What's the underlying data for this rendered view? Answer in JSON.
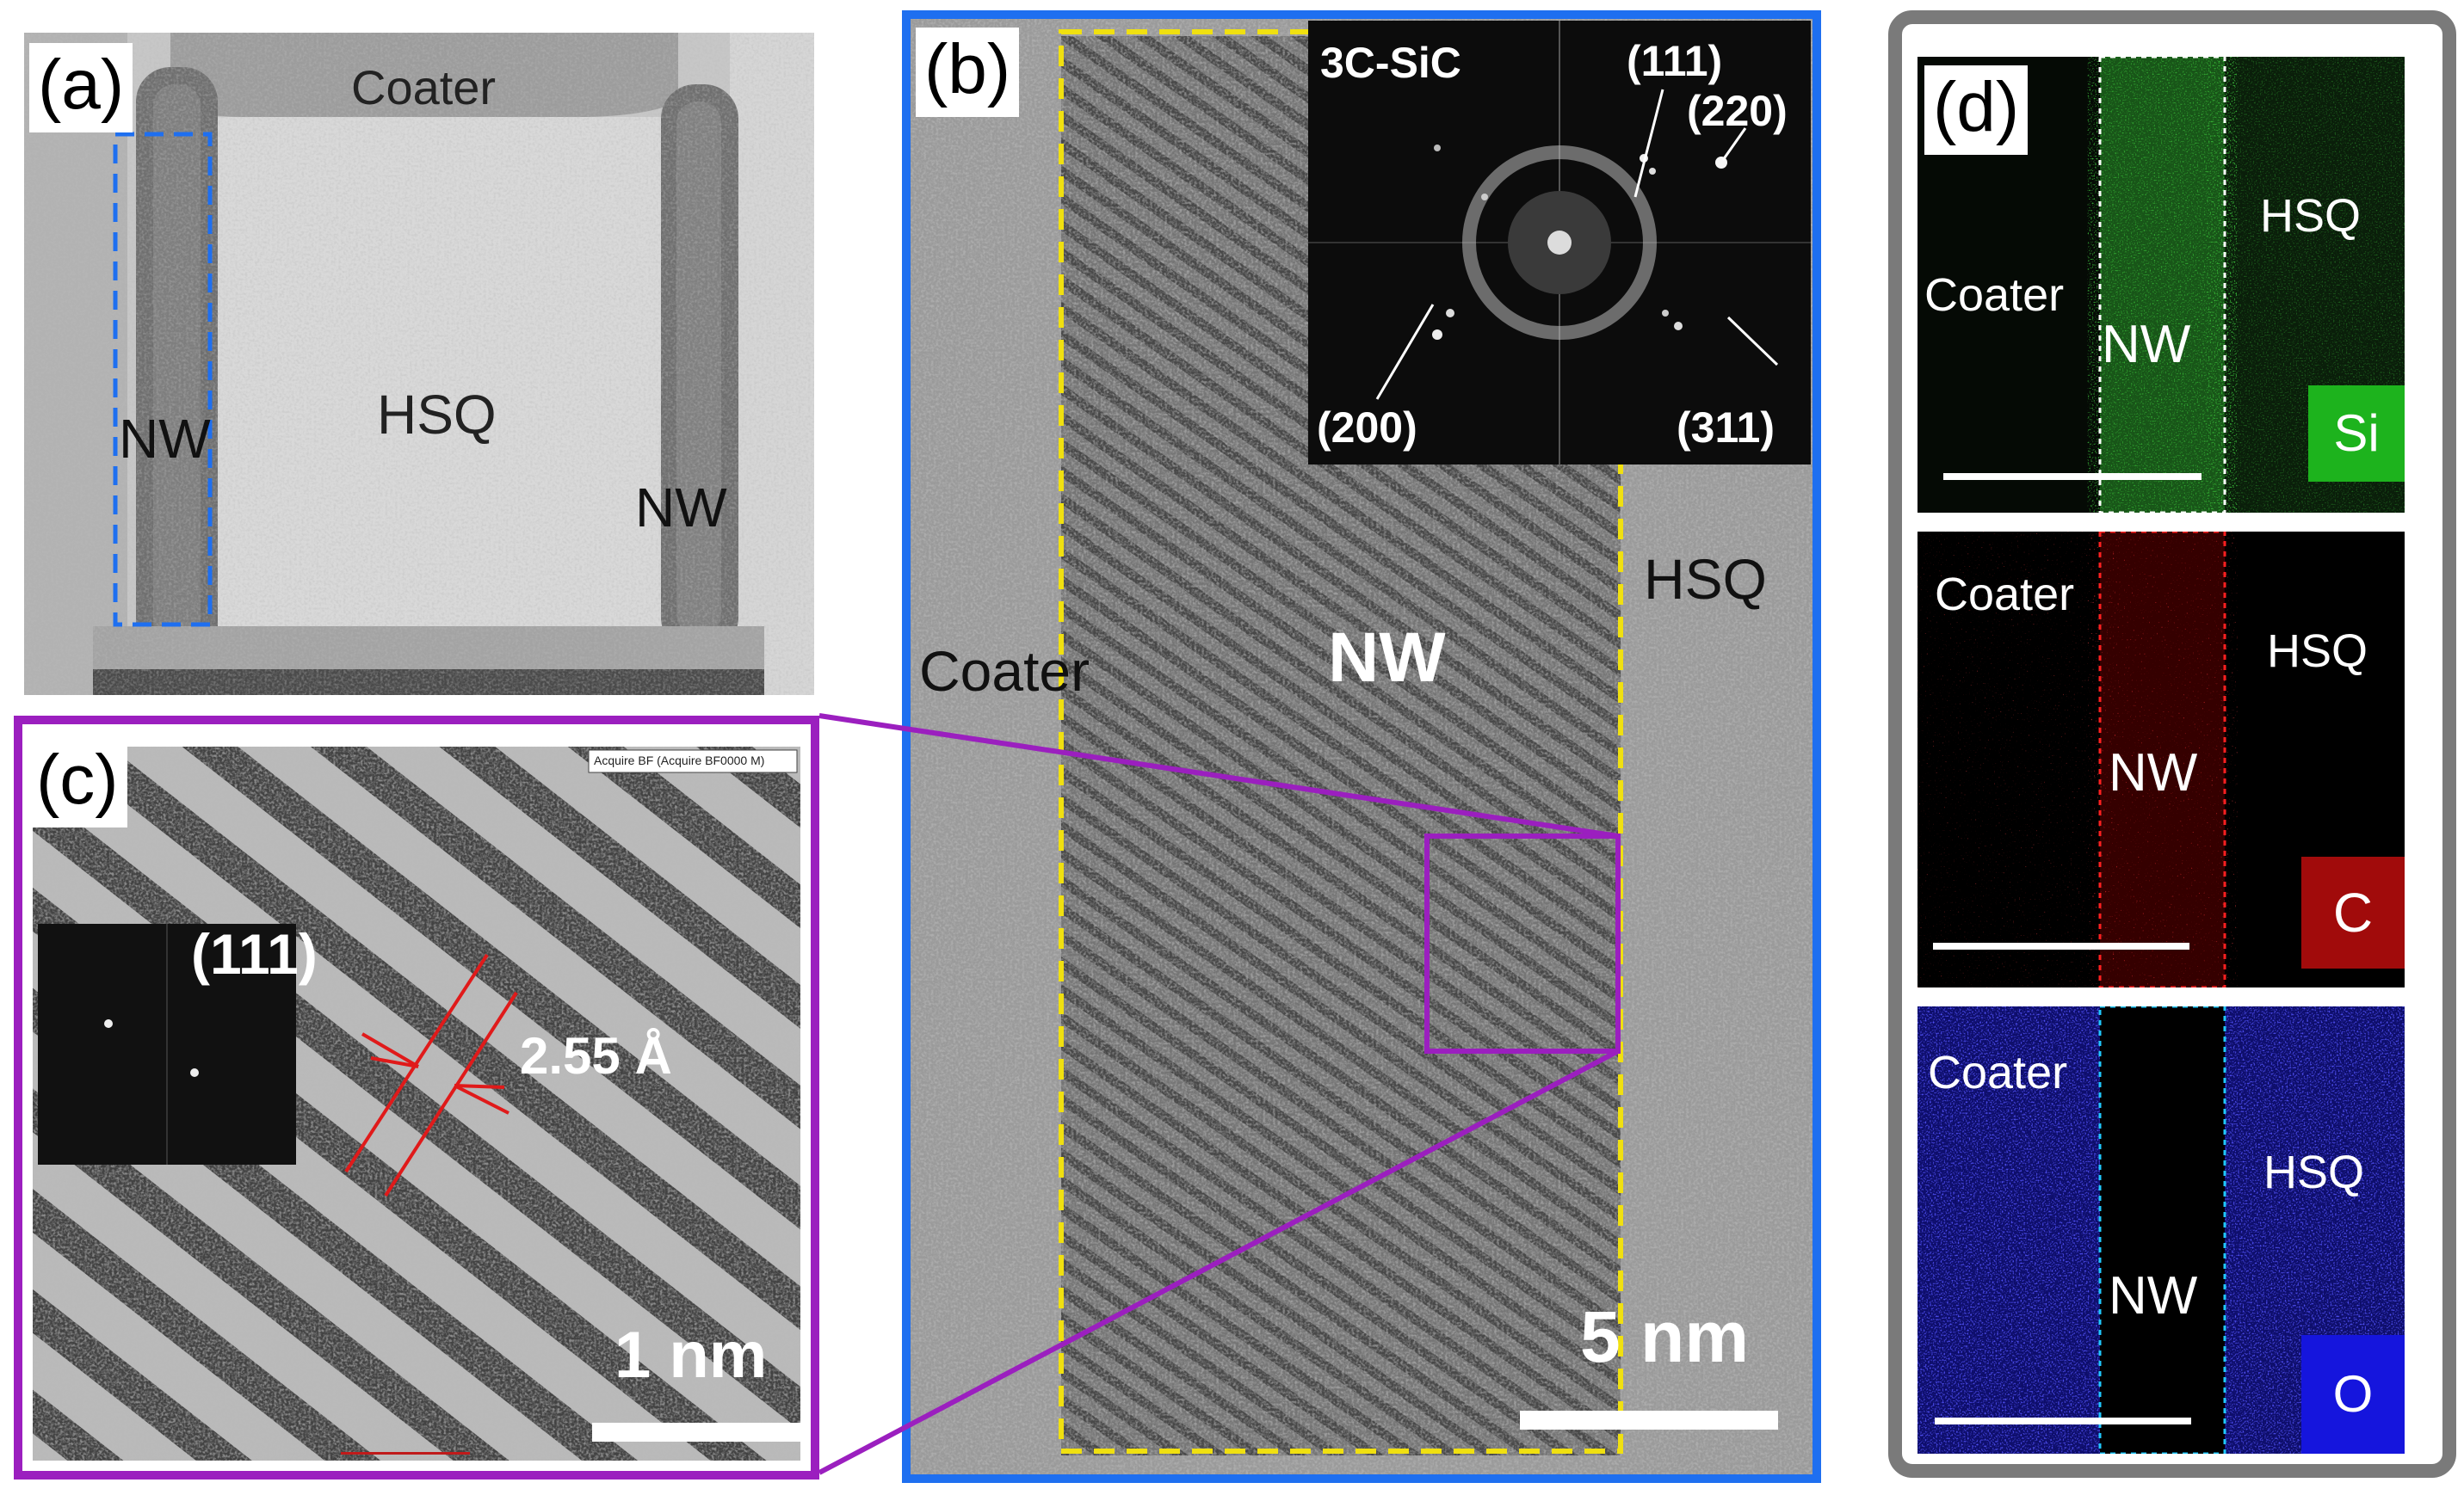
{
  "panels": {
    "a": {
      "tag": "(a)",
      "coater": "Coater",
      "hsq": "HSQ",
      "nw_left": "NW",
      "nw_right": "NW"
    },
    "b": {
      "tag": "(b)",
      "coater": "Coater",
      "nw": "NW",
      "hsq": "HSQ",
      "scale": "5 nm",
      "fft": {
        "phase": "3C-SiC",
        "p111": "(111)",
        "p220": "(220)",
        "p200": "(200)",
        "p311": "(311)"
      }
    },
    "c": {
      "tag": "(c)",
      "plane": "(111)",
      "spacing": "2.55 Å",
      "scale": "1 nm",
      "header": "Acquire BF (Acquire BF0000 M)"
    },
    "d": {
      "tag": "(d)",
      "maps": [
        {
          "element": "Si",
          "coater": "Coater",
          "nw": "NW",
          "hsq": "HSQ",
          "color": "#1db31d"
        },
        {
          "element": "C",
          "coater": "Coater",
          "nw": "NW",
          "hsq": "HSQ",
          "color": "#a10b0b"
        },
        {
          "element": "O",
          "coater": "Coater",
          "nw": "NW",
          "hsq": "HSQ",
          "color": "#1515dd"
        }
      ]
    }
  },
  "colors": {
    "panel_b_frame": "#1e6ff0",
    "panel_c_frame": "#9b1fbf",
    "nw_dashes_a": "#1e6ff0",
    "nw_dashes_b": "#f0e010",
    "spacing_lines": "#e01a1a"
  }
}
